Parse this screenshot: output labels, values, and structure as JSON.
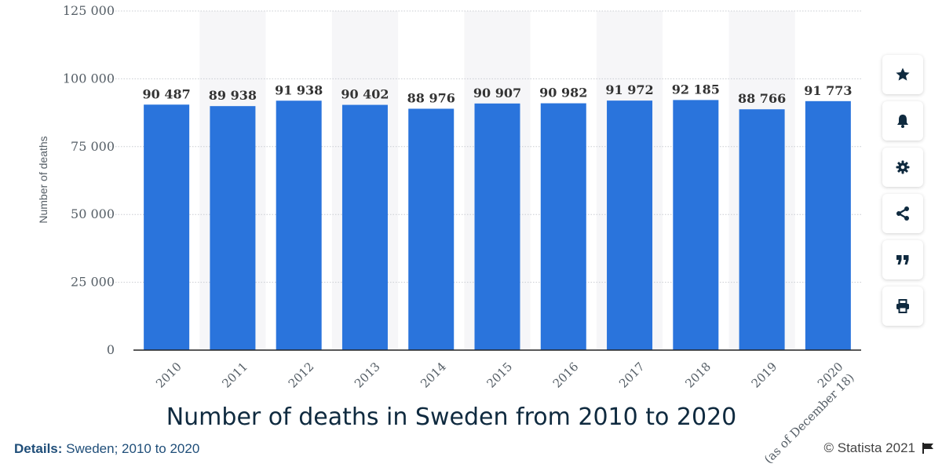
{
  "chart_data": {
    "type": "bar",
    "title": "Number of deaths in Sweden from 2010 to 2020",
    "ylabel": "Number of deaths",
    "categories": [
      "2010",
      "2011",
      "2012",
      "2013",
      "2014",
      "2015",
      "2016",
      "2017",
      "2018",
      "2019",
      "2020"
    ],
    "category_note": [
      "",
      "",
      "",
      "",
      "",
      "",
      "",
      "",
      "",
      "",
      "(as of December 18)"
    ],
    "values": [
      90487,
      89938,
      91938,
      90402,
      88976,
      90907,
      90982,
      91972,
      92185,
      88766,
      91773
    ],
    "value_labels": [
      "90 487",
      "89 938",
      "91 938",
      "90 402",
      "88 976",
      "90 907",
      "90 982",
      "91 972",
      "92 185",
      "88 766",
      "91 773"
    ],
    "yticks": [
      0,
      25000,
      50000,
      75000,
      100000,
      125000
    ],
    "ytick_labels": [
      "0",
      "25 000",
      "50 000",
      "75 000",
      "100 000",
      "125 000"
    ],
    "ylim": [
      0,
      125000
    ],
    "bar_color": "#2a74dc",
    "grid": true,
    "legend": false
  },
  "footer": {
    "details_label": "Details:",
    "details_text": "Sweden; 2010 to 2020",
    "credit": "© Statista 2021"
  },
  "toolbar": {
    "icons": [
      "star-icon",
      "bell-icon",
      "gear-icon",
      "share-icon",
      "quote-icon",
      "print-icon"
    ]
  }
}
